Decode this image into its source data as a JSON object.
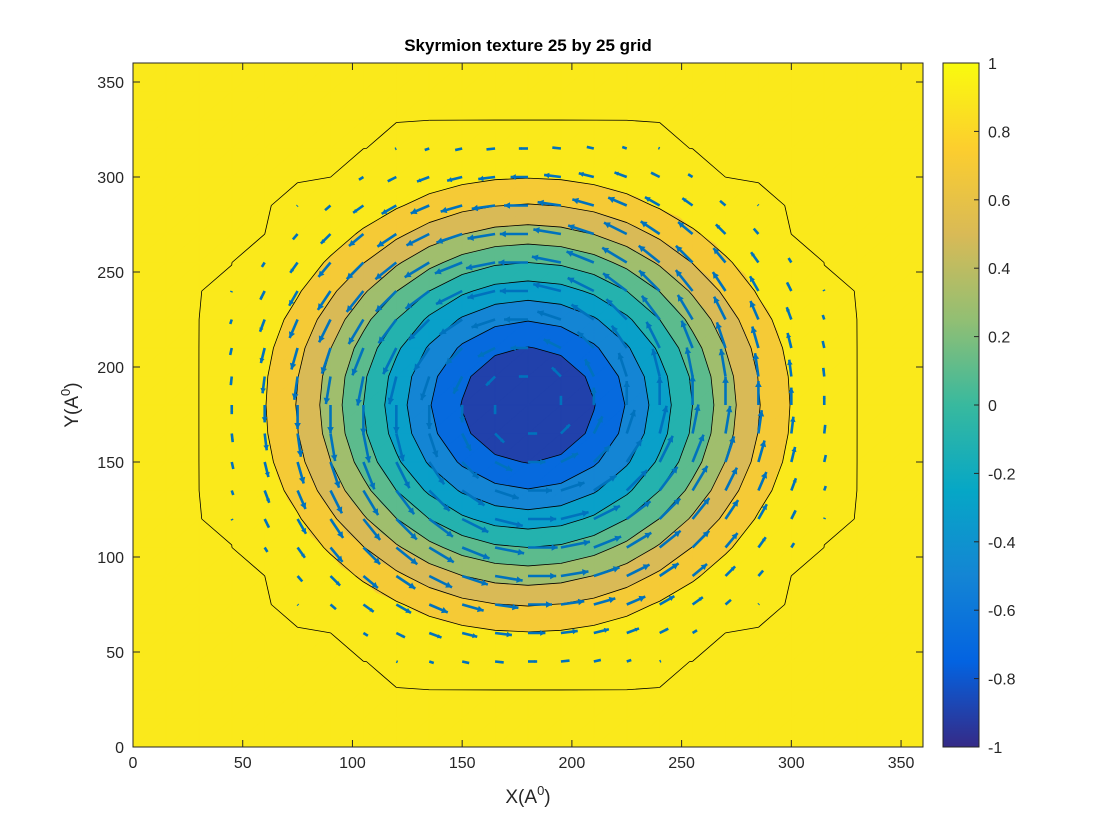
{
  "chart_data": {
    "type": "heatmap",
    "subtype": "filled-contour-with-quiver",
    "title": "Skyrmion texture 25 by 25 grid",
    "xlabel": {
      "base": "X(A",
      "sup": "0",
      "end": ")"
    },
    "ylabel": {
      "base": "Y(A",
      "sup": "0",
      "end": ")"
    },
    "xlim": [
      0,
      360
    ],
    "ylim": [
      0,
      360
    ],
    "xticks": [
      0,
      50,
      100,
      150,
      200,
      250,
      300,
      350
    ],
    "yticks": [
      0,
      50,
      100,
      150,
      200,
      250,
      300,
      350
    ],
    "grid": false,
    "grid_size": 25,
    "grid_step": 15,
    "center": [
      180,
      180
    ],
    "skyrmion_radius": 150,
    "contour_levels": [
      -1,
      -0.8,
      -0.6,
      -0.4,
      -0.2,
      0,
      0.2,
      0.4,
      0.6,
      0.8,
      1
    ],
    "colorbar": {
      "range": [
        -1,
        1
      ],
      "ticks": [
        -1,
        -0.8,
        -0.6,
        -0.4,
        -0.2,
        0,
        0.2,
        0.4,
        0.6,
        0.8,
        1
      ],
      "tick_labels": [
        "-1",
        "-0.8",
        "-0.6",
        "-0.4",
        "-0.2",
        "0",
        "0.2",
        "0.4",
        "0.6",
        "0.8",
        "1"
      ],
      "colormap": "parula",
      "stops": [
        "#352a87",
        "#0363e1",
        "#1485d4",
        "#06a7c6",
        "#38b99e",
        "#92bf73",
        "#d9ba56",
        "#fcce2e",
        "#f9fb0e"
      ]
    },
    "arrow_color": "#0072bd",
    "contour_line_color": "#000000"
  }
}
